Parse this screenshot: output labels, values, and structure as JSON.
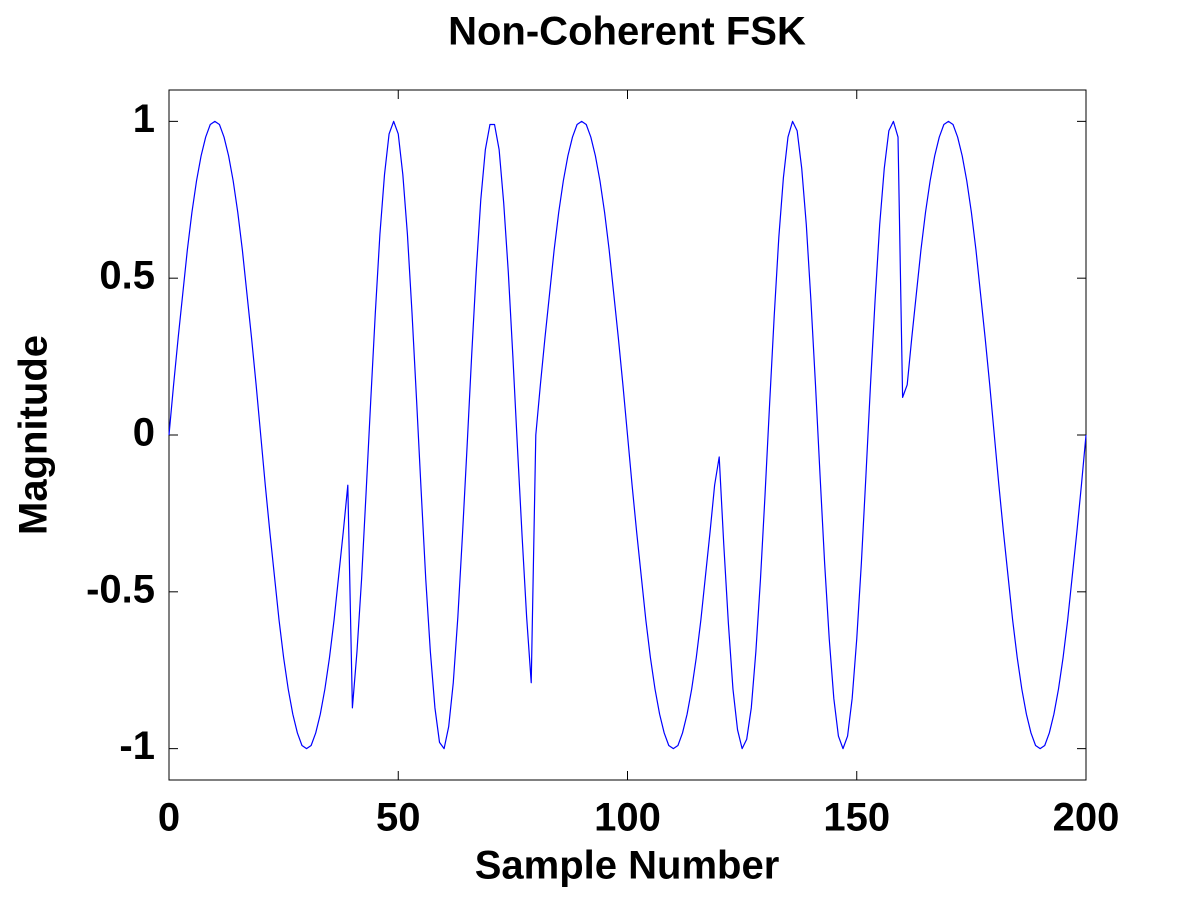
{
  "chart_data": {
    "type": "line",
    "title": "Non-Coherent FSK",
    "xlabel": "Sample Number",
    "ylabel": "Magnitude",
    "color": "#0000ff",
    "x": [
      0,
      1,
      2,
      3,
      4,
      5,
      6,
      7,
      8,
      9,
      10,
      11,
      12,
      13,
      14,
      15,
      16,
      17,
      18,
      19,
      20,
      21,
      22,
      23,
      24,
      25,
      26,
      27,
      28,
      29,
      30,
      31,
      32,
      33,
      34,
      35,
      36,
      37,
      38,
      39,
      40,
      41,
      42,
      43,
      44,
      45,
      46,
      47,
      48,
      49,
      50,
      51,
      52,
      53,
      54,
      55,
      56,
      57,
      58,
      59,
      60,
      61,
      62,
      63,
      64,
      65,
      66,
      67,
      68,
      69,
      70,
      71,
      72,
      73,
      74,
      75,
      76,
      77,
      78,
      79,
      80,
      81,
      82,
      83,
      84,
      85,
      86,
      87,
      88,
      89,
      90,
      91,
      92,
      93,
      94,
      95,
      96,
      97,
      98,
      99,
      100,
      101,
      102,
      103,
      104,
      105,
      106,
      107,
      108,
      109,
      110,
      111,
      112,
      113,
      114,
      115,
      116,
      117,
      118,
      119,
      120,
      121,
      122,
      123,
      124,
      125,
      126,
      127,
      128,
      129,
      130,
      131,
      132,
      133,
      134,
      135,
      136,
      137,
      138,
      139,
      140,
      141,
      142,
      143,
      144,
      145,
      146,
      147,
      148,
      149,
      150,
      151,
      152,
      153,
      154,
      155,
      156,
      157,
      158,
      159,
      160,
      161,
      162,
      163,
      164,
      165,
      166,
      167,
      168,
      169,
      170,
      171,
      172,
      173,
      174,
      175,
      176,
      177,
      178,
      179,
      180,
      181,
      182,
      183,
      184,
      185,
      186,
      187,
      188,
      189,
      190,
      191,
      192,
      193,
      194,
      195,
      196,
      197,
      198,
      199,
      200
    ],
    "values": [
      0,
      0.16,
      0.31,
      0.45,
      0.59,
      0.71,
      0.81,
      0.89,
      0.95,
      0.99,
      1,
      0.99,
      0.95,
      0.89,
      0.81,
      0.71,
      0.59,
      0.45,
      0.31,
      0.16,
      0,
      -0.16,
      -0.31,
      -0.45,
      -0.59,
      -0.71,
      -0.81,
      -0.89,
      -0.95,
      -0.99,
      -1,
      -0.99,
      -0.95,
      -0.89,
      -0.81,
      -0.71,
      -0.59,
      -0.45,
      -0.31,
      -0.16,
      -0.87,
      -0.69,
      -0.46,
      -0.18,
      0.11,
      0.39,
      0.64,
      0.83,
      0.96,
      1,
      0.96,
      0.83,
      0.64,
      0.39,
      0.11,
      -0.18,
      -0.46,
      -0.69,
      -0.87,
      -0.98,
      -1,
      -0.93,
      -0.79,
      -0.58,
      -0.32,
      -0.04,
      0.25,
      0.52,
      0.75,
      0.91,
      0.99,
      0.99,
      0.91,
      0.74,
      0.52,
      0.25,
      -0.04,
      -0.32,
      -0.58,
      -0.79,
      0,
      0.16,
      0.31,
      0.45,
      0.59,
      0.71,
      0.81,
      0.89,
      0.95,
      0.99,
      1,
      0.99,
      0.95,
      0.89,
      0.81,
      0.71,
      0.59,
      0.45,
      0.31,
      0.16,
      0,
      -0.16,
      -0.31,
      -0.45,
      -0.59,
      -0.71,
      -0.81,
      -0.89,
      -0.95,
      -0.99,
      -1,
      -0.99,
      -0.95,
      -0.89,
      -0.81,
      -0.71,
      -0.59,
      -0.45,
      -0.31,
      -0.16,
      -0.07,
      -0.35,
      -0.6,
      -0.81,
      -0.94,
      -1,
      -0.97,
      -0.87,
      -0.69,
      -0.46,
      -0.19,
      0.1,
      0.38,
      0.63,
      0.82,
      0.95,
      1,
      0.97,
      0.85,
      0.67,
      0.43,
      0.16,
      -0.13,
      -0.41,
      -0.65,
      -0.84,
      -0.96,
      -1,
      -0.96,
      -0.84,
      -0.65,
      -0.41,
      -0.13,
      0.16,
      0.43,
      0.67,
      0.85,
      0.97,
      1,
      0.95,
      0.12,
      0.16,
      0.31,
      0.45,
      0.59,
      0.71,
      0.81,
      0.89,
      0.95,
      0.99,
      1,
      0.99,
      0.95,
      0.89,
      0.81,
      0.71,
      0.59,
      0.45,
      0.31,
      0.16,
      0,
      -0.16,
      -0.31,
      -0.45,
      -0.59,
      -0.71,
      -0.81,
      -0.89,
      -0.95,
      -0.99,
      -1,
      -0.99,
      -0.95,
      -0.89,
      -0.81,
      -0.71,
      -0.59,
      -0.45,
      -0.31,
      -0.16,
      0
    ],
    "xlim": [
      0,
      200
    ],
    "xticks": [
      0,
      50,
      100,
      150,
      200
    ],
    "ylim": [
      -1.1,
      1.1
    ],
    "yticks": [
      -1,
      -0.5,
      0,
      0.5,
      1
    ],
    "grid": false
  }
}
